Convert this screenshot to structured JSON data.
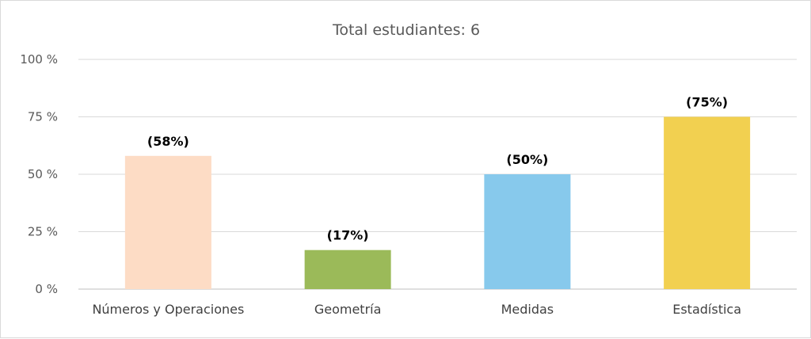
{
  "chart_data": {
    "type": "bar",
    "title": "Total estudiantes: 6",
    "categories": [
      "Números y Operaciones",
      "Geometría",
      "Medidas",
      "Estadística"
    ],
    "values": [
      58,
      17,
      50,
      75
    ],
    "data_labels": [
      "(58%)",
      "(17%)",
      "(50%)",
      "(75%)"
    ],
    "colors": [
      "#fddcc5",
      "#9bba59",
      "#87c9ec",
      "#f2d050"
    ],
    "ylim": [
      0,
      100
    ],
    "yticks": [
      0,
      25,
      50,
      75,
      100
    ],
    "ytick_labels": [
      "0 %",
      "25 %",
      "50 %",
      "75 %",
      "100 %"
    ],
    "grid": true,
    "legend": "none"
  }
}
